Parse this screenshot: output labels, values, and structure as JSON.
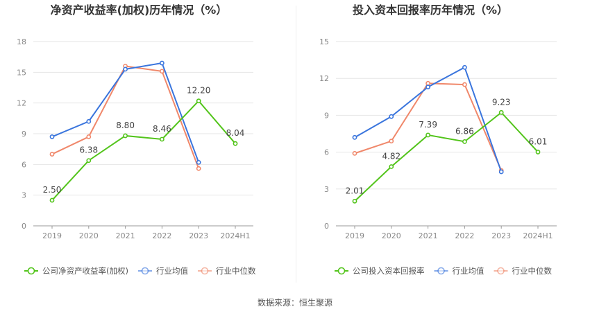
{
  "footer": {
    "source": "数据来源：恒生聚源"
  },
  "chart_data": [
    {
      "type": "line",
      "title": "净资产收益率(加权)历年情况（%）",
      "categories": [
        "2019",
        "2020",
        "2021",
        "2022",
        "2023",
        "2024H1"
      ],
      "ylim": [
        0,
        18
      ],
      "yticks": [
        0,
        3,
        6,
        9,
        12,
        15,
        18
      ],
      "grid": true,
      "legend_position": "bottom",
      "series": [
        {
          "name": "公司净资产收益率(加权)",
          "color": "#52c41a",
          "labeled": true,
          "values": [
            2.5,
            6.38,
            8.8,
            8.46,
            12.2,
            8.04
          ],
          "labels": [
            "2.50",
            "6.38",
            "8.80",
            "8.46",
            "12.20",
            "8.04"
          ]
        },
        {
          "name": "行业均值",
          "color": "#3a75dd",
          "labeled": false,
          "values": [
            8.7,
            10.2,
            15.3,
            15.9,
            6.2,
            null
          ]
        },
        {
          "name": "行业中位数",
          "color": "#f0886b",
          "labeled": false,
          "values": [
            7.0,
            8.7,
            15.6,
            15.1,
            5.6,
            null
          ]
        }
      ]
    },
    {
      "type": "line",
      "title": "投入资本回报率历年情况（%）",
      "categories": [
        "2019",
        "2020",
        "2021",
        "2022",
        "2023",
        "2024H1"
      ],
      "ylim": [
        0,
        15
      ],
      "yticks": [
        0,
        3,
        6,
        9,
        12,
        15
      ],
      "grid": true,
      "legend_position": "bottom",
      "series": [
        {
          "name": "公司投入资本回报率",
          "color": "#52c41a",
          "labeled": true,
          "values": [
            2.01,
            4.82,
            7.39,
            6.86,
            9.23,
            6.01
          ],
          "labels": [
            "2.01",
            "4.82",
            "7.39",
            "6.86",
            "9.23",
            "6.01"
          ]
        },
        {
          "name": "行业均值",
          "color": "#3a75dd",
          "labeled": false,
          "values": [
            7.2,
            8.9,
            11.3,
            12.9,
            4.4,
            null
          ]
        },
        {
          "name": "行业中位数",
          "color": "#f0886b",
          "labeled": false,
          "values": [
            5.9,
            6.9,
            11.6,
            11.5,
            4.5,
            null
          ]
        }
      ]
    }
  ]
}
